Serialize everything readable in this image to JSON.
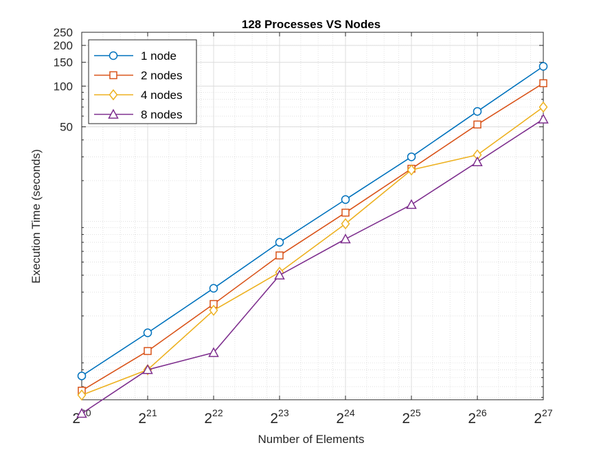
{
  "chart_data": {
    "type": "line",
    "title": "128 Processes VS Nodes",
    "xlabel": "Number of Elements",
    "ylabel": "Execution Time (seconds)",
    "x_scale": "log2",
    "y_scale": "log",
    "x": [
      1048576,
      2097152,
      4194304,
      8388608,
      16777216,
      33554432,
      67108864,
      134217728
    ],
    "x_tick_labels": [
      {
        "base": "2",
        "exp": "20"
      },
      {
        "base": "2",
        "exp": "21"
      },
      {
        "base": "2",
        "exp": "22"
      },
      {
        "base": "2",
        "exp": "23"
      },
      {
        "base": "2",
        "exp": "24"
      },
      {
        "base": "2",
        "exp": "25"
      },
      {
        "base": "2",
        "exp": "26"
      },
      {
        "base": "2",
        "exp": "27"
      }
    ],
    "xlim": [
      1048576,
      134217728
    ],
    "ylim": [
      0.48,
      250
    ],
    "y_ticks": [
      50,
      100,
      150,
      200,
      250
    ],
    "y_tick_labels": [
      "50",
      "100",
      "150",
      "200",
      "250"
    ],
    "grid": true,
    "minor_grid": true,
    "legend_position": "top-left",
    "series": [
      {
        "name": "1 node",
        "color": "#0072BD",
        "marker": "circle",
        "values": [
          0.72,
          1.5,
          3.2,
          7.0,
          14.5,
          30,
          65,
          140
        ]
      },
      {
        "name": "2 nodes",
        "color": "#D95319",
        "marker": "square",
        "values": [
          0.56,
          1.1,
          2.45,
          5.6,
          11.6,
          24.5,
          52,
          105
        ]
      },
      {
        "name": "4 nodes",
        "color": "#EDB120",
        "marker": "diamond",
        "values": [
          0.52,
          0.8,
          2.2,
          4.2,
          9.6,
          24,
          31,
          70
        ]
      },
      {
        "name": "8 nodes",
        "color": "#7E2F8E",
        "marker": "triangle",
        "values": [
          0.38,
          0.8,
          1.07,
          4.0,
          7.4,
          13.3,
          27.5,
          57
        ]
      }
    ]
  }
}
